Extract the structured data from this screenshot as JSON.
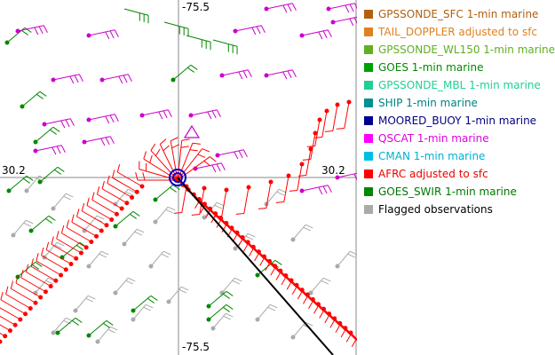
{
  "map": {
    "lon_label_top": "-75.5",
    "lon_label_bottom": "-75.5",
    "lat_label_left": "30.2",
    "lat_label_right": "30.2",
    "colors": {
      "gps_marine": "#cc00cc",
      "goes": "#008800",
      "flagged": "#aaaaaa",
      "afrc": "#ff0000",
      "track": "#000000",
      "storm_center": "#0000cc"
    }
  },
  "legend": {
    "items": [
      {
        "label": "GPSSONDE_SFC 1-min marine",
        "swatch": "#b06010",
        "text_color": "#b06010"
      },
      {
        "label": "TAIL_DOPPLER adjusted to sfc",
        "swatch": "#e08020",
        "text_color": "#e08020"
      },
      {
        "label": "GPSSONDE_WL150 1-min marine",
        "swatch": "#60b020",
        "text_color": "#60b020"
      },
      {
        "label": "GOES 1-min marine",
        "swatch": "#00a000",
        "text_color": "#008800"
      },
      {
        "label": "GPSSONDE_MBL 1-min marine",
        "swatch": "#20d090",
        "text_color": "#20d090"
      },
      {
        "label": "SHIP 1-min marine",
        "swatch": "#009090",
        "text_color": "#008080"
      },
      {
        "label": "MOORED_BUOY 1-min marine",
        "swatch": "#000090",
        "text_color": "#000080"
      },
      {
        "label": "QSCAT 1-min marine",
        "swatch": "#ff00ff",
        "text_color": "#dd00dd"
      },
      {
        "label": "CMAN 1-min marine",
        "swatch": "#00c0e0",
        "text_color": "#00b0d0"
      },
      {
        "label": "AFRC adjusted to sfc",
        "swatch": "#ff0000",
        "text_color": "#ee0000"
      },
      {
        "label": "GOES_SWIR 1-min marine",
        "swatch": "#008800",
        "text_color": "#007700"
      },
      {
        "label": "Flagged observations",
        "swatch": "#aaaaaa",
        "text_color": "#000000"
      }
    ]
  }
}
